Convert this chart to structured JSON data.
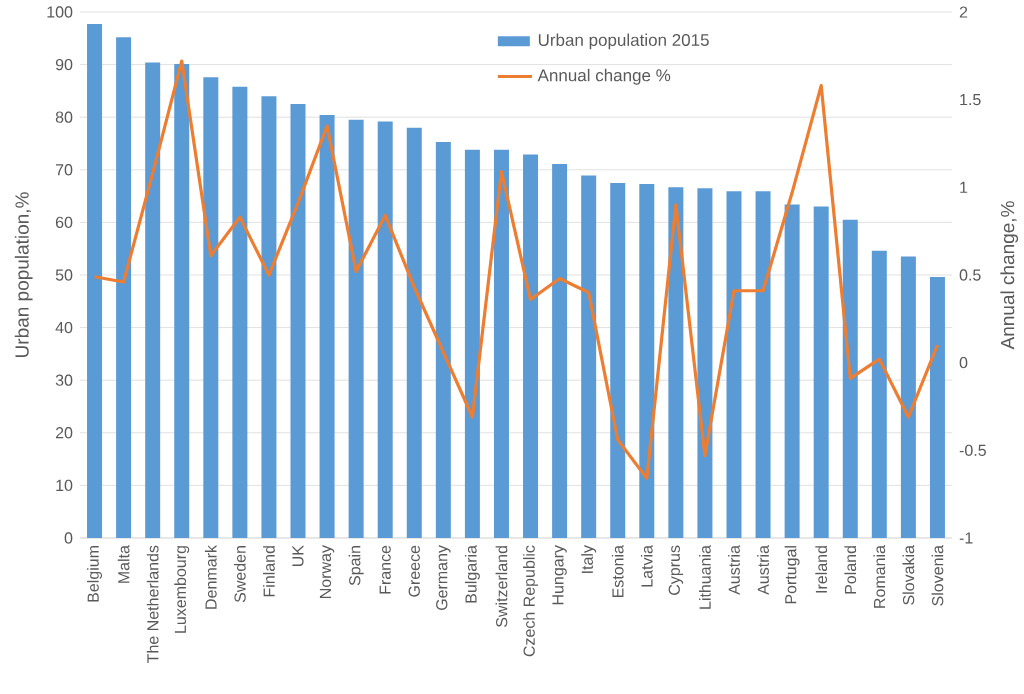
{
  "chart_data": {
    "type": "bar",
    "ylabel": "Urban population,%",
    "y2label": "Annual change,%",
    "categories": [
      "Belgium",
      "Malta",
      "The Netherlands",
      "Luxembourg",
      "Denmark",
      "Sweden",
      "Finland",
      "UK",
      "Norway",
      "Spain",
      "France",
      "Greece",
      "Germany",
      "Bulgaria",
      "Switzerland",
      "Czech Republic",
      "Hungary",
      "Italy",
      "Estonia",
      "Latvia",
      "Cyprus",
      "Lithuania",
      "Austria",
      "Austria",
      "Portugal",
      "Ireland",
      "Poland",
      "Romania",
      "Slovakia",
      "Slovenia"
    ],
    "series": [
      {
        "name": "Urban population 2015",
        "color": "#5b9bd5",
        "values": [
          97.7,
          95.2,
          90.4,
          90.1,
          87.6,
          85.8,
          84.0,
          82.5,
          80.4,
          79.5,
          79.2,
          78.0,
          75.3,
          73.8,
          73.8,
          72.9,
          71.1,
          68.9,
          67.5,
          67.3,
          66.7,
          66.5,
          65.9,
          65.9,
          63.4,
          63.0,
          60.5,
          54.6,
          53.5,
          49.6
        ]
      },
      {
        "name": "Annual change %",
        "type": "line",
        "axis": "y2",
        "color": "#ed7d31",
        "values": [
          0.49,
          0.46,
          1.08,
          1.72,
          0.61,
          0.83,
          0.5,
          0.91,
          1.35,
          0.52,
          0.84,
          0.43,
          0.06,
          -0.31,
          1.09,
          0.36,
          0.48,
          0.4,
          -0.44,
          -0.66,
          0.9,
          -0.53,
          0.41,
          0.41,
          0.97,
          1.58,
          -0.09,
          0.02,
          -0.31,
          0.1
        ]
      }
    ],
    "ylim": [
      0,
      100
    ],
    "yticks": [
      0,
      10,
      20,
      30,
      40,
      50,
      60,
      70,
      80,
      90,
      100
    ],
    "y2lim": [
      -1,
      2
    ],
    "y2ticks": [
      -1,
      -0.5,
      0,
      0.5,
      1,
      1.5,
      2
    ],
    "grid": "y",
    "legend": "top",
    "marker": "none",
    "line_style": "solid"
  }
}
